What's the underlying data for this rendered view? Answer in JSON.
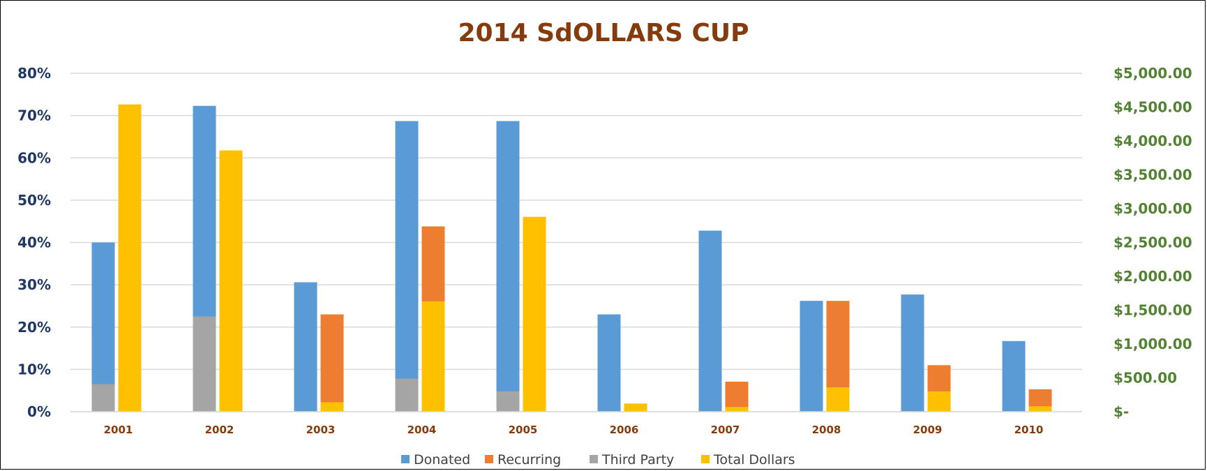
{
  "chart_data": {
    "type": "bar",
    "title": "2014 SdOLLARS CUP",
    "categories": [
      "2001",
      "2002",
      "2003",
      "2004",
      "2005",
      "2006",
      "2007",
      "2008",
      "2009",
      "2010"
    ],
    "left_axis": {
      "ticks": [
        "0%",
        "10%",
        "20%",
        "30%",
        "40%",
        "50%",
        "60%",
        "70%",
        "80%"
      ],
      "ylim": [
        0,
        80
      ],
      "unit": "percent"
    },
    "right_axis": {
      "ticks": [
        "$-",
        "$500.00",
        "$1,000.00",
        "$1,500.00",
        "$2,000.00",
        "$2,500.00",
        "$3,000.00",
        "$3,500.00",
        "$4,000.00",
        "$4,500.00",
        "$5,000.00"
      ],
      "ylim": [
        0,
        5000
      ],
      "unit": "dollars"
    },
    "grid": true,
    "legend_position": "bottom",
    "series": [
      {
        "name": "Donated",
        "axis": "left",
        "color": "#5B9BD5",
        "values": [
          40,
          72.3,
          30.6,
          68.7,
          68.7,
          23,
          42.8,
          26.2,
          27.7,
          16.7
        ]
      },
      {
        "name": "Recurring",
        "axis": "left",
        "color": "#ED7D31",
        "values": [
          0,
          0,
          23,
          43.8,
          0,
          0,
          7.1,
          26.2,
          11,
          5.3
        ]
      },
      {
        "name": "Third Party",
        "axis": "left",
        "color": "#A5A5A5",
        "values": [
          6.5,
          22.5,
          0,
          7.8,
          4.8,
          0,
          0,
          0,
          0,
          0
        ]
      },
      {
        "name": "Total Dollars",
        "axis": "right",
        "color": "#FFC000",
        "values": [
          4540,
          3860,
          140,
          1630,
          2880,
          120,
          70,
          360,
          300,
          80
        ]
      }
    ],
    "colors": {
      "title": "#843C0C",
      "left_axis_text": "#1F3864",
      "right_axis_text": "#548235",
      "x_axis_text": "#843C0C",
      "gridline": "#D9D9D9"
    }
  }
}
